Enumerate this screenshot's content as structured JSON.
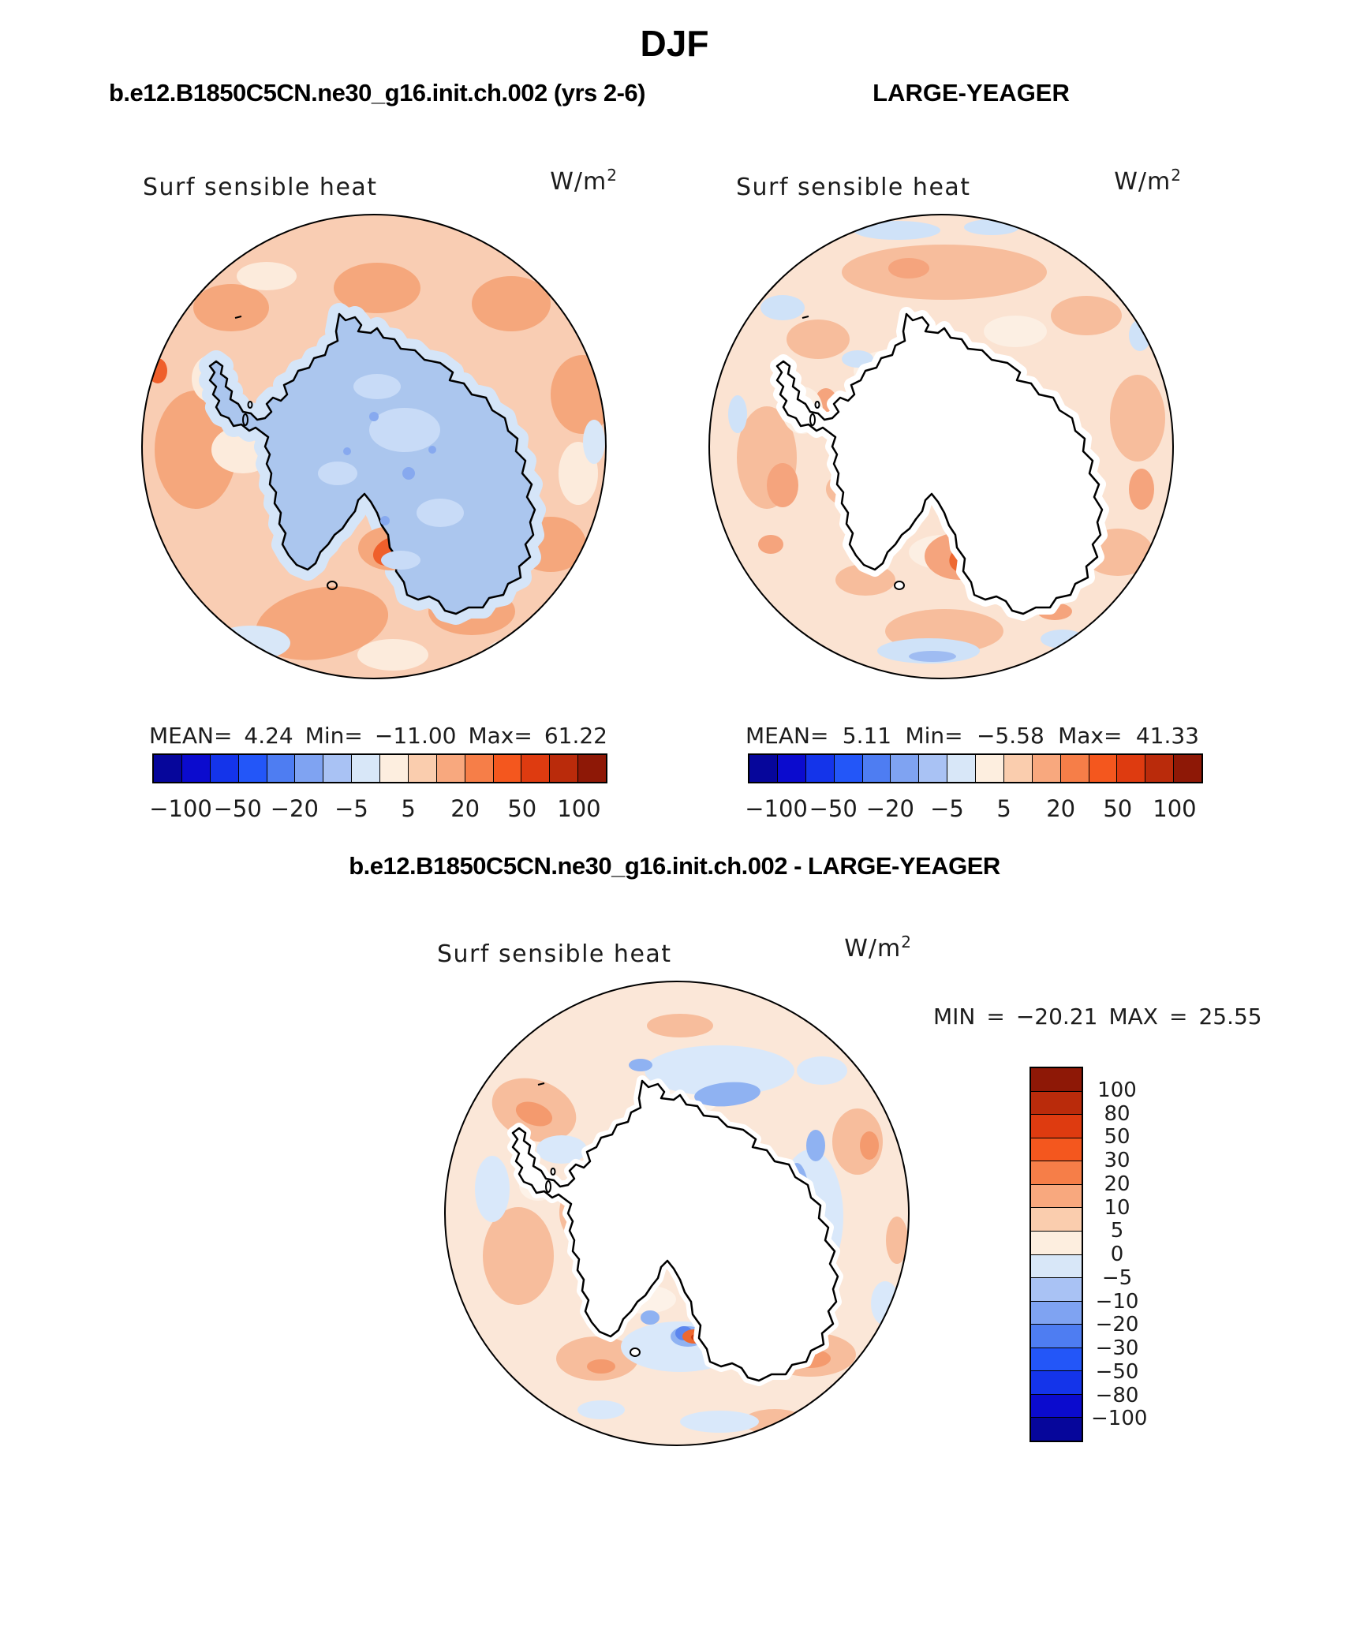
{
  "page": {
    "title": "DJF"
  },
  "panels": {
    "model": {
      "title": "b.e12.B1850C5CN.ne30_g16.init.ch.002 (yrs 2-6)",
      "field_label": "Surf sensible heat",
      "units": "W/m",
      "units_sup": "2",
      "stats": {
        "mean_label": "MEAN=",
        "mean": "4.24",
        "min_label": "Min=",
        "min": "−11.00",
        "max_label": "Max=",
        "max": "61.22"
      }
    },
    "obs": {
      "title": "LARGE-YEAGER",
      "field_label": "Surf sensible heat",
      "units": "W/m",
      "units_sup": "2",
      "stats": {
        "mean_label": "MEAN=",
        "mean": "5.11",
        "min_label": "Min=",
        "min": "−5.58",
        "max_label": "Max=",
        "max": "41.33"
      }
    },
    "diff": {
      "title": "b.e12.B1850C5CN.ne30_g16.init.ch.002 - LARGE-YEAGER",
      "field_label": "Surf sensible heat",
      "units": "W/m",
      "units_sup": "2",
      "stats": {
        "min_label": "MIN",
        "eq": "=",
        "min": "−20.21",
        "max_label": "MAX",
        "max": "25.55"
      }
    }
  },
  "colorbar": {
    "colors": [
      "#06069B",
      "#0B0BCE",
      "#1434EA",
      "#2356F8",
      "#4E7DF2",
      "#7FA3F2",
      "#A9C2F4",
      "#D8E7F8",
      "#FDEEDF",
      "#FACDAE",
      "#F8A87E",
      "#F67E48",
      "#F4571E",
      "#DE3B10",
      "#BA2B0B",
      "#8E1806"
    ],
    "levels": [
      -100,
      -80,
      -50,
      -30,
      -20,
      -10,
      -5,
      0,
      5,
      10,
      20,
      30,
      50,
      80,
      100
    ],
    "h_tick_labels": [
      "−100",
      "−50",
      "−20",
      "−5",
      "5",
      "20",
      "50",
      "100"
    ],
    "v_tick_labels": [
      "100",
      "80",
      "50",
      "30",
      "20",
      "10",
      "5",
      "0",
      "−5",
      "−10",
      "−20",
      "−30",
      "−50",
      "−80",
      "−100"
    ]
  },
  "chart_data": [
    {
      "type": "heatmap",
      "subtype": "polar-stereographic-contour-map",
      "panel": "model",
      "title": "b.e12.B1850C5CN.ne30_g16.init.ch.002 (yrs 2-6)",
      "season": "DJF",
      "field": "Surf sensible heat",
      "units": "W/m^2",
      "region": "Antarctica / Southern Ocean",
      "stats": {
        "mean": 4.24,
        "min": -11.0,
        "max": 61.22
      },
      "contour_levels": [
        -100,
        -80,
        -50,
        -30,
        -20,
        -10,
        -5,
        0,
        5,
        10,
        20,
        30,
        50,
        80,
        100
      ],
      "legend_position": "bottom",
      "notes": "Ocean mostly +5..+20 W/m2 (peach/salmon); continent -10..-5 (light blue); hot spots >20 near Ross Sea and coast"
    },
    {
      "type": "heatmap",
      "subtype": "polar-stereographic-contour-map",
      "panel": "observations",
      "title": "LARGE-YEAGER",
      "season": "DJF",
      "field": "Surf sensible heat",
      "units": "W/m^2",
      "region": "Antarctica / Southern Ocean",
      "stats": {
        "mean": 5.11,
        "min": -5.58,
        "max": 41.33
      },
      "contour_levels": [
        -100,
        -80,
        -50,
        -30,
        -20,
        -10,
        -5,
        0,
        5,
        10,
        20,
        30,
        50,
        80,
        100
      ],
      "legend_position": "bottom",
      "notes": "Continent masked white (no data over land); ocean 0..+20 with spot >20 near Ross Sea"
    },
    {
      "type": "heatmap",
      "subtype": "polar-stereographic-contour-map",
      "panel": "difference (model - observations)",
      "title": "b.e12.B1850C5CN.ne30_g16.init.ch.002 - LARGE-YEAGER",
      "season": "DJF",
      "field": "Surf sensible heat",
      "units": "W/m^2",
      "region": "Antarctica / Southern Ocean",
      "stats": {
        "min": -20.21,
        "max": 25.55
      },
      "contour_levels": [
        -100,
        -80,
        -50,
        -30,
        -20,
        -10,
        -5,
        0,
        5,
        10,
        20,
        30,
        50,
        80,
        100
      ],
      "legend_position": "right",
      "notes": "Continent masked white; ocean mostly 0..+10 with -5..-10 band hugging the coast"
    }
  ]
}
